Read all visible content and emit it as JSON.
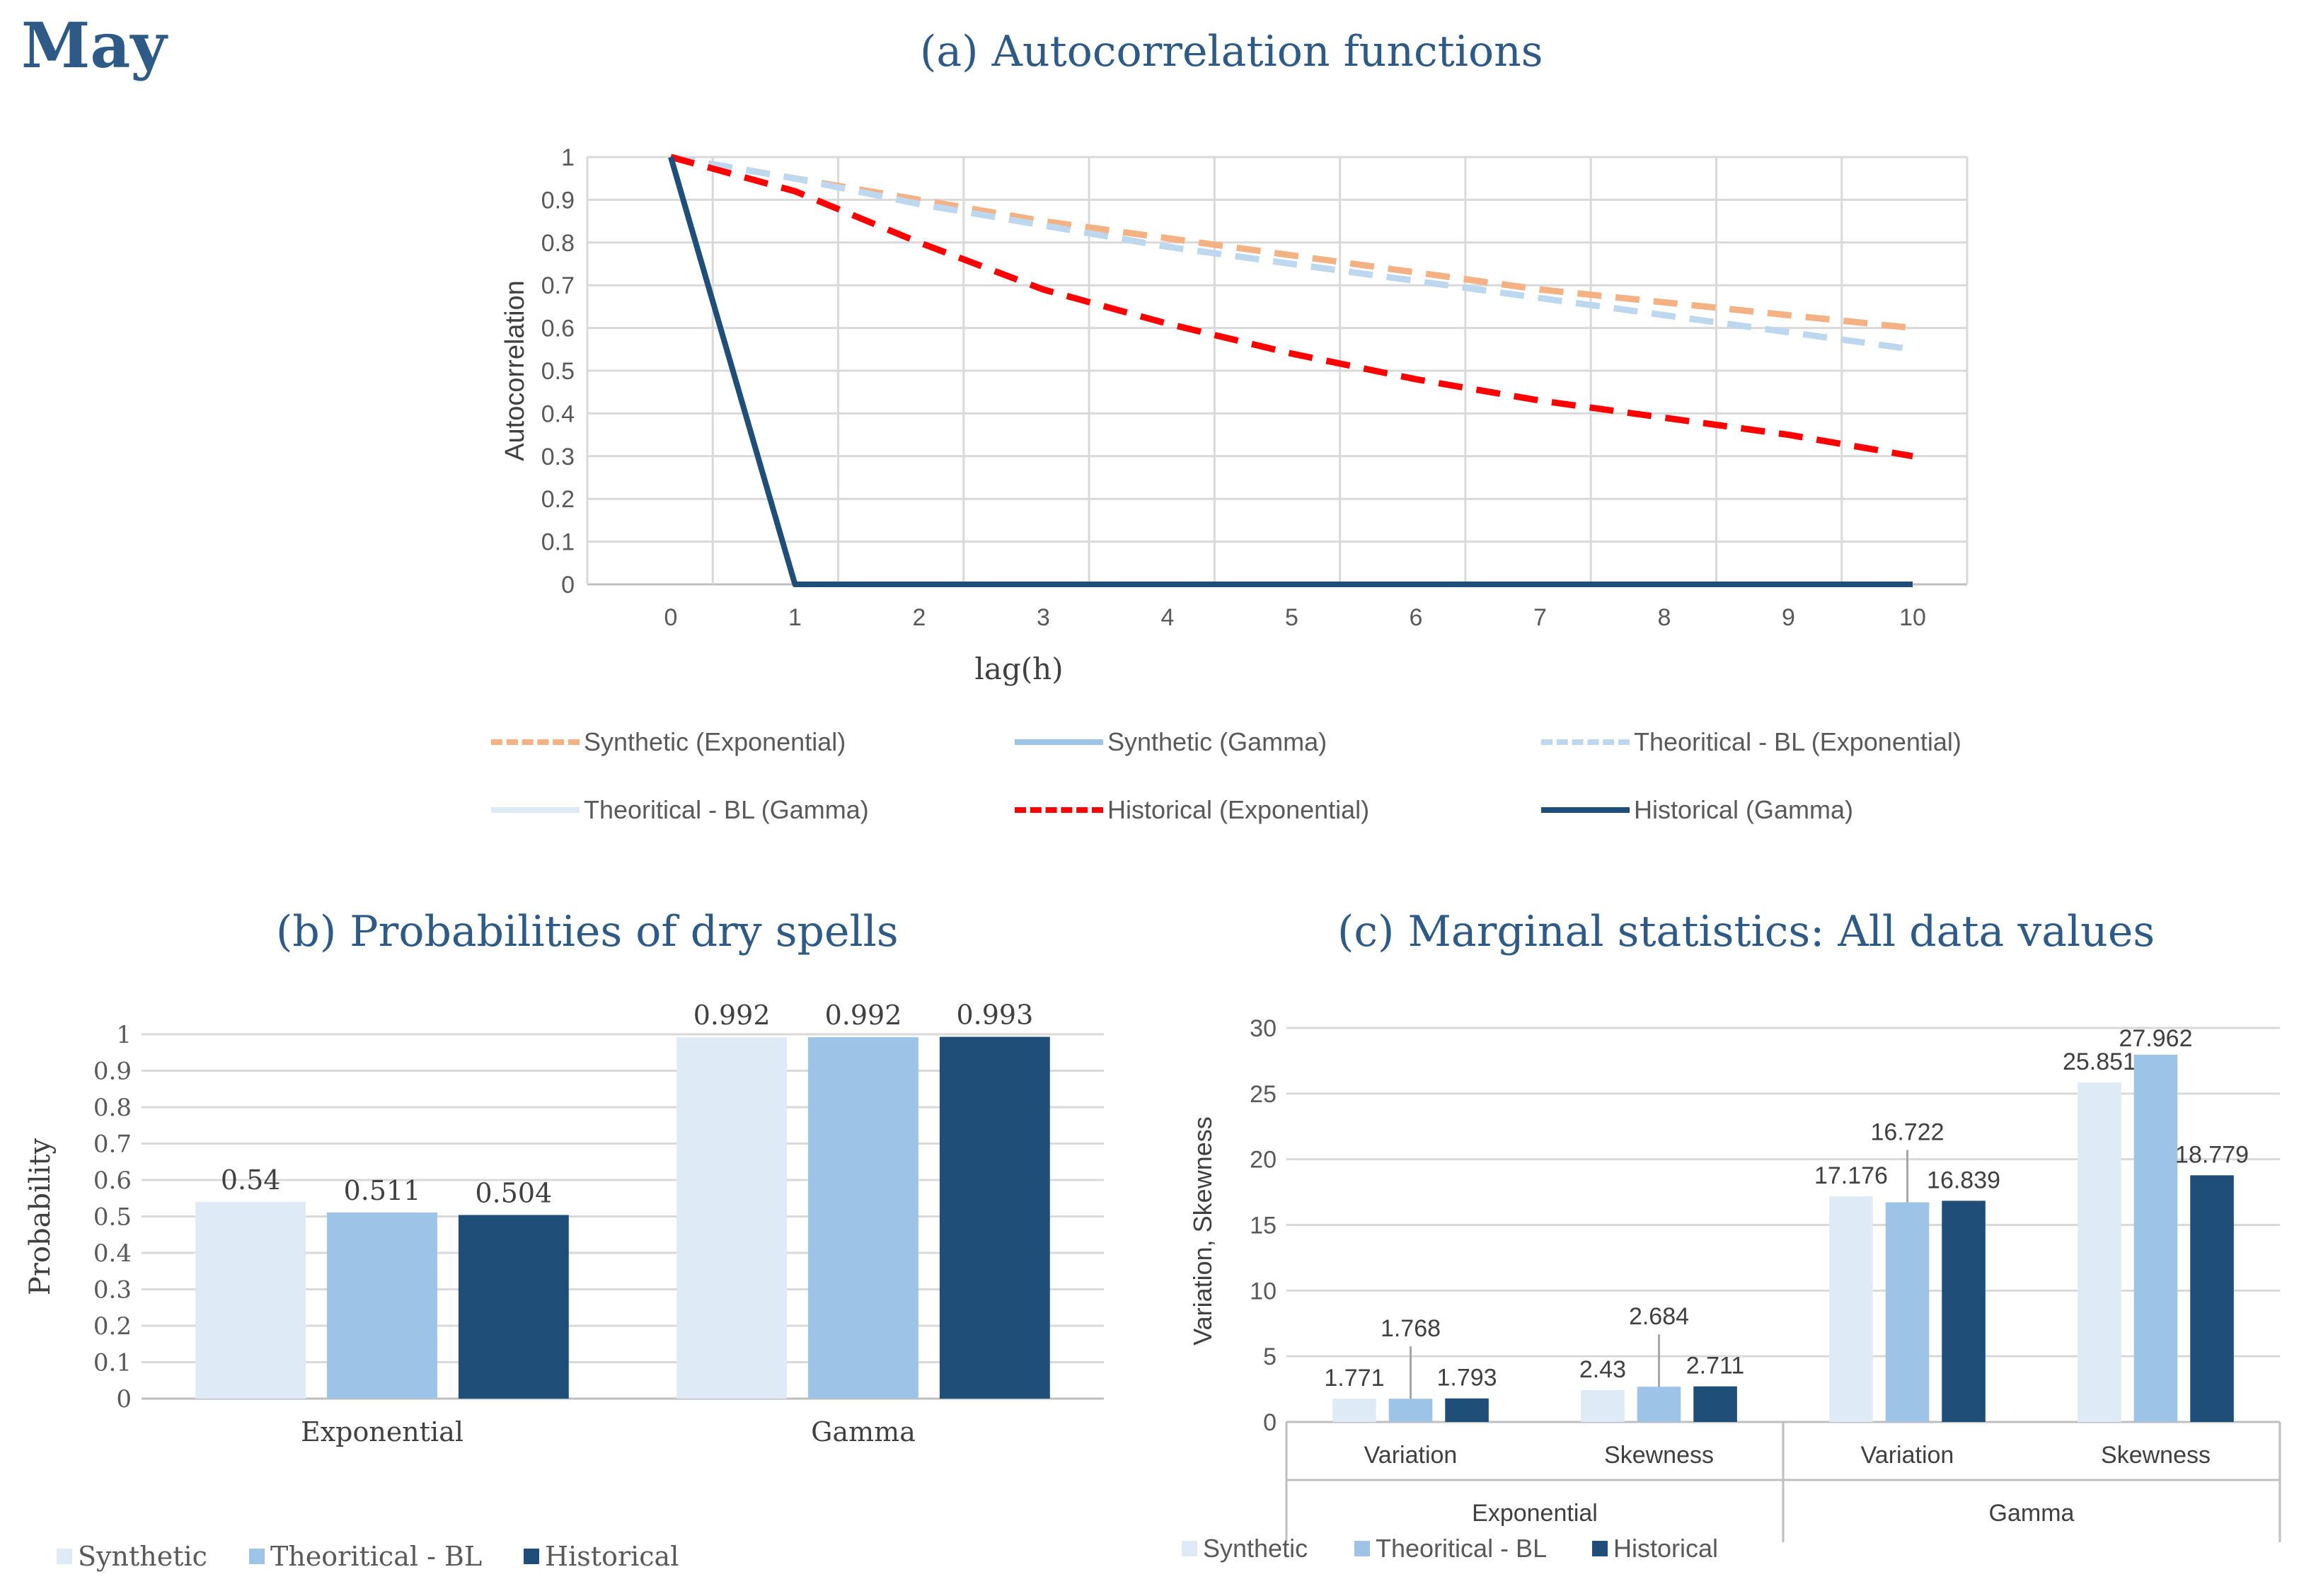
{
  "page_title": "May",
  "colors": {
    "synthetic_exp": "#f4b183",
    "synthetic_gamma": "#9dc3e6",
    "theo_exp": "#bdd7ee",
    "theo_gamma": "#deebf7",
    "hist_exp": "#ff0000",
    "hist_gamma": "#1f4e79",
    "bar_synthetic": "#deebf7",
    "bar_theo": "#9dc3e6",
    "bar_hist": "#1f4e79",
    "title": "#2e5a87"
  },
  "chart_data": [
    {
      "id": "a",
      "type": "line",
      "title": "(a) Autocorrelation functions",
      "xlabel": "lag(h)",
      "ylabel": "Autocorrelation",
      "x": [
        0,
        1,
        2,
        3,
        4,
        5,
        6,
        7,
        8,
        9,
        10
      ],
      "x_ticks": [
        "0",
        "1",
        "2",
        "3",
        "4",
        "5",
        "6",
        "7",
        "8",
        "9",
        "10"
      ],
      "ylim": [
        0,
        1
      ],
      "y_ticks": [
        "0",
        "0.1",
        "0.2",
        "0.3",
        "0.4",
        "0.5",
        "0.6",
        "0.7",
        "0.8",
        "0.9",
        "1"
      ],
      "grid": true,
      "legend_position": "bottom",
      "series": [
        {
          "name": "Synthetic (Exponential)",
          "style": "dashed",
          "color_key": "synthetic_exp",
          "values": [
            1,
            0.95,
            0.9,
            0.85,
            0.81,
            0.77,
            0.73,
            0.69,
            0.66,
            0.63,
            0.6
          ]
        },
        {
          "name": "Synthetic (Gamma)",
          "style": "solid",
          "color_key": "synthetic_gamma",
          "values": [
            1,
            0,
            0,
            0,
            0,
            0,
            0,
            0,
            0,
            0,
            0
          ]
        },
        {
          "name": "Theoritical - BL (Exponential)",
          "style": "dashed",
          "color_key": "theo_exp",
          "values": [
            1,
            0.95,
            0.89,
            0.84,
            0.79,
            0.75,
            0.71,
            0.67,
            0.63,
            0.59,
            0.55
          ]
        },
        {
          "name": "Theoritical - BL (Gamma)",
          "style": "solid",
          "color_key": "theo_gamma",
          "values": [
            1,
            0,
            0,
            0,
            0,
            0,
            0,
            0,
            0,
            0,
            0
          ]
        },
        {
          "name": "Historical (Exponential)",
          "style": "dashed",
          "color_key": "hist_exp",
          "values": [
            1,
            0.92,
            0.8,
            0.69,
            0.61,
            0.54,
            0.48,
            0.43,
            0.39,
            0.35,
            0.3
          ]
        },
        {
          "name": "Historical (Gamma)",
          "style": "solid",
          "color_key": "hist_gamma",
          "values": [
            1,
            0,
            0,
            0,
            0,
            0,
            0,
            0,
            0,
            0,
            0
          ]
        }
      ]
    },
    {
      "id": "b",
      "type": "bar",
      "title": "(b) Probabilities of dry spells",
      "ylabel": "Probability",
      "categories": [
        "Exponential",
        "Gamma"
      ],
      "ylim": [
        0,
        1
      ],
      "y_ticks": [
        "0",
        "0.1",
        "0.2",
        "0.3",
        "0.4",
        "0.5",
        "0.6",
        "0.7",
        "0.8",
        "0.9",
        "1"
      ],
      "grid": true,
      "legend_position": "bottom-left",
      "series": [
        {
          "name": "Synthetic",
          "color_key": "bar_synthetic",
          "values": [
            0.54,
            0.992
          ],
          "labels": [
            "0.54",
            "0.992"
          ]
        },
        {
          "name": "Theoritical - BL",
          "color_key": "bar_theo",
          "values": [
            0.511,
            0.992
          ],
          "labels": [
            "0.511",
            "0.992"
          ]
        },
        {
          "name": "Historical",
          "color_key": "bar_hist",
          "values": [
            0.504,
            0.993
          ],
          "labels": [
            "0.504",
            "0.993"
          ]
        }
      ]
    },
    {
      "id": "c",
      "type": "bar",
      "title": "(c) Marginal statistics: All data values",
      "ylabel": "Variation, Skewness",
      "categories": [
        "Variation",
        "Skewness",
        "Variation",
        "Skewness"
      ],
      "groups": [
        "Exponential",
        "Gamma"
      ],
      "ylim": [
        0,
        30
      ],
      "y_ticks": [
        "0",
        "5",
        "10",
        "15",
        "20",
        "25",
        "30"
      ],
      "grid": true,
      "legend_position": "bottom-left",
      "series": [
        {
          "name": "Synthetic",
          "color_key": "bar_synthetic",
          "values": [
            1.771,
            2.43,
            17.176,
            25.851
          ],
          "labels": [
            "1.771",
            "2.43",
            "17.176",
            "25.851"
          ]
        },
        {
          "name": "Theoritical - BL",
          "color_key": "bar_theo",
          "values": [
            1.768,
            2.684,
            16.722,
            27.962
          ],
          "labels": [
            "1.768",
            "2.684",
            "16.722",
            "27.962"
          ]
        },
        {
          "name": "Historical",
          "color_key": "bar_hist",
          "values": [
            1.793,
            2.711,
            16.839,
            18.779
          ],
          "labels": [
            "1.793",
            "2.711",
            "16.839",
            "18.779"
          ]
        }
      ]
    }
  ]
}
